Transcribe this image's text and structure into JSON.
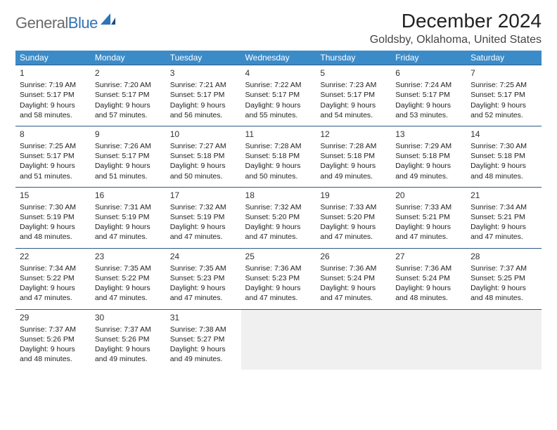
{
  "brand": {
    "general": "General",
    "blue": "Blue"
  },
  "title": "December 2024",
  "location": "Goldsby, Oklahoma, United States",
  "calendar": {
    "header_bg": "#3b8bc8",
    "header_fg": "#ffffff",
    "rule_color": "#2f5a8a",
    "empty_bg": "#f0f0f0",
    "font_size_cell": 10.5,
    "weekdays": [
      "Sunday",
      "Monday",
      "Tuesday",
      "Wednesday",
      "Thursday",
      "Friday",
      "Saturday"
    ],
    "weeks": [
      [
        {
          "n": "1",
          "sr": "Sunrise: 7:19 AM",
          "ss": "Sunset: 5:17 PM",
          "dl": "Daylight: 9 hours and 58 minutes."
        },
        {
          "n": "2",
          "sr": "Sunrise: 7:20 AM",
          "ss": "Sunset: 5:17 PM",
          "dl": "Daylight: 9 hours and 57 minutes."
        },
        {
          "n": "3",
          "sr": "Sunrise: 7:21 AM",
          "ss": "Sunset: 5:17 PM",
          "dl": "Daylight: 9 hours and 56 minutes."
        },
        {
          "n": "4",
          "sr": "Sunrise: 7:22 AM",
          "ss": "Sunset: 5:17 PM",
          "dl": "Daylight: 9 hours and 55 minutes."
        },
        {
          "n": "5",
          "sr": "Sunrise: 7:23 AM",
          "ss": "Sunset: 5:17 PM",
          "dl": "Daylight: 9 hours and 54 minutes."
        },
        {
          "n": "6",
          "sr": "Sunrise: 7:24 AM",
          "ss": "Sunset: 5:17 PM",
          "dl": "Daylight: 9 hours and 53 minutes."
        },
        {
          "n": "7",
          "sr": "Sunrise: 7:25 AM",
          "ss": "Sunset: 5:17 PM",
          "dl": "Daylight: 9 hours and 52 minutes."
        }
      ],
      [
        {
          "n": "8",
          "sr": "Sunrise: 7:25 AM",
          "ss": "Sunset: 5:17 PM",
          "dl": "Daylight: 9 hours and 51 minutes."
        },
        {
          "n": "9",
          "sr": "Sunrise: 7:26 AM",
          "ss": "Sunset: 5:17 PM",
          "dl": "Daylight: 9 hours and 51 minutes."
        },
        {
          "n": "10",
          "sr": "Sunrise: 7:27 AM",
          "ss": "Sunset: 5:18 PM",
          "dl": "Daylight: 9 hours and 50 minutes."
        },
        {
          "n": "11",
          "sr": "Sunrise: 7:28 AM",
          "ss": "Sunset: 5:18 PM",
          "dl": "Daylight: 9 hours and 50 minutes."
        },
        {
          "n": "12",
          "sr": "Sunrise: 7:28 AM",
          "ss": "Sunset: 5:18 PM",
          "dl": "Daylight: 9 hours and 49 minutes."
        },
        {
          "n": "13",
          "sr": "Sunrise: 7:29 AM",
          "ss": "Sunset: 5:18 PM",
          "dl": "Daylight: 9 hours and 49 minutes."
        },
        {
          "n": "14",
          "sr": "Sunrise: 7:30 AM",
          "ss": "Sunset: 5:18 PM",
          "dl": "Daylight: 9 hours and 48 minutes."
        }
      ],
      [
        {
          "n": "15",
          "sr": "Sunrise: 7:30 AM",
          "ss": "Sunset: 5:19 PM",
          "dl": "Daylight: 9 hours and 48 minutes."
        },
        {
          "n": "16",
          "sr": "Sunrise: 7:31 AM",
          "ss": "Sunset: 5:19 PM",
          "dl": "Daylight: 9 hours and 47 minutes."
        },
        {
          "n": "17",
          "sr": "Sunrise: 7:32 AM",
          "ss": "Sunset: 5:19 PM",
          "dl": "Daylight: 9 hours and 47 minutes."
        },
        {
          "n": "18",
          "sr": "Sunrise: 7:32 AM",
          "ss": "Sunset: 5:20 PM",
          "dl": "Daylight: 9 hours and 47 minutes."
        },
        {
          "n": "19",
          "sr": "Sunrise: 7:33 AM",
          "ss": "Sunset: 5:20 PM",
          "dl": "Daylight: 9 hours and 47 minutes."
        },
        {
          "n": "20",
          "sr": "Sunrise: 7:33 AM",
          "ss": "Sunset: 5:21 PM",
          "dl": "Daylight: 9 hours and 47 minutes."
        },
        {
          "n": "21",
          "sr": "Sunrise: 7:34 AM",
          "ss": "Sunset: 5:21 PM",
          "dl": "Daylight: 9 hours and 47 minutes."
        }
      ],
      [
        {
          "n": "22",
          "sr": "Sunrise: 7:34 AM",
          "ss": "Sunset: 5:22 PM",
          "dl": "Daylight: 9 hours and 47 minutes."
        },
        {
          "n": "23",
          "sr": "Sunrise: 7:35 AM",
          "ss": "Sunset: 5:22 PM",
          "dl": "Daylight: 9 hours and 47 minutes."
        },
        {
          "n": "24",
          "sr": "Sunrise: 7:35 AM",
          "ss": "Sunset: 5:23 PM",
          "dl": "Daylight: 9 hours and 47 minutes."
        },
        {
          "n": "25",
          "sr": "Sunrise: 7:36 AM",
          "ss": "Sunset: 5:23 PM",
          "dl": "Daylight: 9 hours and 47 minutes."
        },
        {
          "n": "26",
          "sr": "Sunrise: 7:36 AM",
          "ss": "Sunset: 5:24 PM",
          "dl": "Daylight: 9 hours and 47 minutes."
        },
        {
          "n": "27",
          "sr": "Sunrise: 7:36 AM",
          "ss": "Sunset: 5:24 PM",
          "dl": "Daylight: 9 hours and 48 minutes."
        },
        {
          "n": "28",
          "sr": "Sunrise: 7:37 AM",
          "ss": "Sunset: 5:25 PM",
          "dl": "Daylight: 9 hours and 48 minutes."
        }
      ],
      [
        {
          "n": "29",
          "sr": "Sunrise: 7:37 AM",
          "ss": "Sunset: 5:26 PM",
          "dl": "Daylight: 9 hours and 48 minutes."
        },
        {
          "n": "30",
          "sr": "Sunrise: 7:37 AM",
          "ss": "Sunset: 5:26 PM",
          "dl": "Daylight: 9 hours and 49 minutes."
        },
        {
          "n": "31",
          "sr": "Sunrise: 7:38 AM",
          "ss": "Sunset: 5:27 PM",
          "dl": "Daylight: 9 hours and 49 minutes."
        },
        null,
        null,
        null,
        null
      ]
    ]
  }
}
